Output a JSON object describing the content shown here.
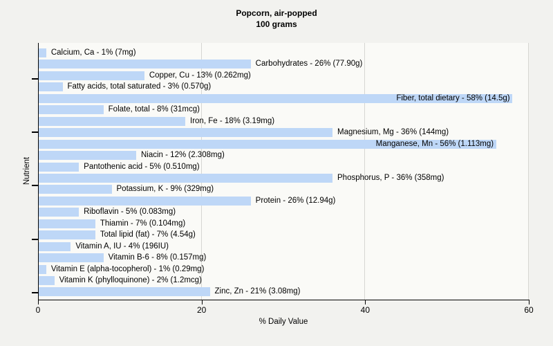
{
  "chart_data": {
    "type": "bar",
    "orientation": "horizontal",
    "title": "Popcorn, air-popped",
    "subtitle": "100 grams",
    "xlabel": "% Daily Value",
    "ylabel": "Nutrient",
    "xlim": [
      0,
      60
    ],
    "xticks": [
      0,
      20,
      40,
      60
    ],
    "grid": "vertical",
    "legend": "none",
    "bar_color": "#bed7f7",
    "categories": [
      "Calcium, Ca",
      "Carbohydrates",
      "Copper, Cu",
      "Fatty acids, total saturated",
      "Fiber, total dietary",
      "Folate, total",
      "Iron, Fe",
      "Magnesium, Mg",
      "Manganese, Mn",
      "Niacin",
      "Pantothenic acid",
      "Phosphorus, P",
      "Potassium, K",
      "Protein",
      "Riboflavin",
      "Thiamin",
      "Total lipid (fat)",
      "Vitamin A, IU",
      "Vitamin B-6",
      "Vitamin E (alpha-tocopherol)",
      "Vitamin K (phylloquinone)",
      "Zinc, Zn"
    ],
    "values": [
      1,
      26,
      13,
      3,
      58,
      8,
      18,
      36,
      56,
      12,
      5,
      36,
      9,
      26,
      5,
      7,
      7,
      4,
      8,
      1,
      2,
      21
    ],
    "amounts": [
      "7mg",
      "77.90g",
      "0.262mg",
      "0.570g",
      "14.5g",
      "31mcg",
      "3.19mg",
      "144mg",
      "1.113mg",
      "2.308mg",
      "0.510mg",
      "358mg",
      "329mg",
      "12.94g",
      "0.083mg",
      "0.104mg",
      "4.54g",
      "196IU",
      "0.157mg",
      "0.29mg",
      "1.2mcg",
      "3.08mg"
    ],
    "point_labels": [
      "Calcium, Ca - 1% (7mg)",
      "Carbohydrates - 26% (77.90g)",
      "Copper, Cu - 13% (0.262mg)",
      "Fatty acids, total saturated - 3% (0.570g)",
      "Fiber, total dietary - 58% (14.5g)",
      "Folate, total - 8% (31mcg)",
      "Iron, Fe - 18% (3.19mg)",
      "Magnesium, Mg - 36% (144mg)",
      "Manganese, Mn - 56% (1.113mg)",
      "Niacin - 12% (2.308mg)",
      "Pantothenic acid - 5% (0.510mg)",
      "Phosphorus, P - 36% (358mg)",
      "Potassium, K - 9% (329mg)",
      "Protein - 26% (12.94g)",
      "Riboflavin - 5% (0.083mg)",
      "Thiamin - 7% (0.104mg)",
      "Total lipid (fat) - 7% (4.54g)",
      "Vitamin A, IU - 4% (196IU)",
      "Vitamin B-6 - 8% (0.157mg)",
      "Vitamin E (alpha-tocopherol) - 1% (0.29mg)",
      "Vitamin K (phylloquinone) - 2% (1.2mcg)",
      "Zinc, Zn - 21% (3.08mg)"
    ]
  }
}
